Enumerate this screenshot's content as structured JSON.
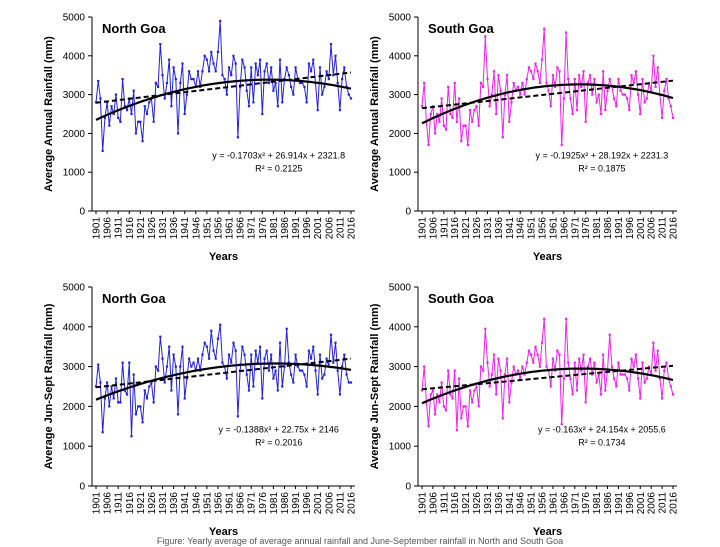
{
  "figure_caption": "Figure: Yearly average of average annual rainfall and June-September rainfall in North and South Goa",
  "chart_data": [
    {
      "type": "line",
      "title": "North Goa",
      "xlabel": "Years",
      "ylabel": "Average Annual Rainfall (mm)",
      "ylim": [
        0,
        5000
      ],
      "yticks": [
        0,
        1000,
        2000,
        3000,
        4000,
        5000
      ],
      "xlim": [
        1901,
        2016
      ],
      "xticks": [
        1901,
        1906,
        1911,
        1916,
        1921,
        1926,
        1931,
        1936,
        1941,
        1946,
        1951,
        1956,
        1961,
        1966,
        1971,
        1976,
        1981,
        1986,
        1991,
        1996,
        2001,
        2006,
        2011,
        2016
      ],
      "series_color": "#2222dd",
      "equation": "y = -0.1703x² + 26.914x + 2321.8",
      "r2": "R² = 0.2125",
      "poly": [
        -0.1703,
        26.914,
        2321.8
      ],
      "linear": [
        2790,
        3570
      ],
      "grid": false,
      "years": [
        1901,
        1902,
        1903,
        1904,
        1905,
        1906,
        1907,
        1908,
        1909,
        1910,
        1911,
        1912,
        1913,
        1914,
        1915,
        1916,
        1917,
        1918,
        1919,
        1920,
        1921,
        1922,
        1923,
        1924,
        1925,
        1926,
        1927,
        1928,
        1929,
        1930,
        1931,
        1932,
        1933,
        1934,
        1935,
        1936,
        1937,
        1938,
        1939,
        1940,
        1941,
        1942,
        1943,
        1944,
        1945,
        1946,
        1947,
        1948,
        1949,
        1950,
        1951,
        1952,
        1953,
        1954,
        1955,
        1956,
        1957,
        1958,
        1959,
        1960,
        1961,
        1962,
        1963,
        1964,
        1965,
        1966,
        1967,
        1968,
        1969,
        1970,
        1971,
        1972,
        1973,
        1974,
        1975,
        1976,
        1977,
        1978,
        1979,
        1980,
        1981,
        1982,
        1983,
        1984,
        1985,
        1986,
        1987,
        1988,
        1989,
        1990,
        1991,
        1992,
        1993,
        1994,
        1995,
        1996,
        1997,
        1998,
        1999,
        2000,
        2001,
        2002,
        2003,
        2004,
        2005,
        2006,
        2007,
        2008,
        2009,
        2010,
        2011,
        2012,
        2013,
        2014,
        2015,
        2016
      ],
      "values": [
        2800,
        3350,
        2900,
        1550,
        2400,
        2800,
        2200,
        2700,
        2500,
        3000,
        2400,
        2300,
        3400,
        2700,
        2600,
        2900,
        2500,
        3100,
        2000,
        2300,
        2300,
        1800,
        2700,
        2500,
        2800,
        2900,
        2300,
        3300,
        3200,
        4300,
        3500,
        2900,
        3300,
        3900,
        2700,
        3700,
        3400,
        2000,
        3300,
        3800,
        2500,
        3000,
        3600,
        3400,
        3400,
        3200,
        3600,
        3200,
        3600,
        4000,
        3900,
        3600,
        4100,
        3800,
        3600,
        4100,
        4900,
        3500,
        3400,
        3000,
        3700,
        3500,
        4000,
        3800,
        1900,
        3200,
        3900,
        3700,
        3100,
        2700,
        3700,
        2800,
        3800,
        3500,
        3900,
        2500,
        3600,
        3800,
        3300,
        3700,
        3100,
        3300,
        2700,
        3900,
        2800,
        3400,
        3700,
        3500,
        3200,
        3000,
        3700,
        3400,
        3300,
        3300,
        3200,
        2800,
        3800,
        3600,
        3900,
        3300,
        2600,
        3700,
        3000,
        3200,
        3600,
        3400,
        4300,
        3500,
        4000,
        3300,
        2600,
        3400,
        3700,
        3200,
        3000,
        2900
      ]
    },
    {
      "type": "line",
      "title": "South Goa",
      "xlabel": "Years",
      "ylabel": "Average Annual Rainfall (mm)",
      "ylim": [
        0,
        5000
      ],
      "yticks": [
        0,
        1000,
        2000,
        3000,
        4000,
        5000
      ],
      "xlim": [
        1901,
        2016
      ],
      "xticks": [
        1901,
        1906,
        1911,
        1916,
        1921,
        1926,
        1931,
        1936,
        1941,
        1946,
        1951,
        1956,
        1961,
        1966,
        1971,
        1976,
        1981,
        1986,
        1991,
        1996,
        2001,
        2006,
        2011,
        2016
      ],
      "series_color": "#ee22ee",
      "equation": "y = -0.1925x² + 28.192x + 2231.3",
      "r2": "R² = 0.1875",
      "poly": [
        -0.1925,
        28.192,
        2231.3
      ],
      "linear": [
        2650,
        3360
      ],
      "grid": false,
      "years": [
        1901,
        1902,
        1903,
        1904,
        1905,
        1906,
        1907,
        1908,
        1909,
        1910,
        1911,
        1912,
        1913,
        1914,
        1915,
        1916,
        1917,
        1918,
        1919,
        1920,
        1921,
        1922,
        1923,
        1924,
        1925,
        1926,
        1927,
        1928,
        1929,
        1930,
        1931,
        1932,
        1933,
        1934,
        1935,
        1936,
        1937,
        1938,
        1939,
        1940,
        1941,
        1942,
        1943,
        1944,
        1945,
        1946,
        1947,
        1948,
        1949,
        1950,
        1951,
        1952,
        1953,
        1954,
        1955,
        1956,
        1957,
        1958,
        1959,
        1960,
        1961,
        1962,
        1963,
        1964,
        1965,
        1966,
        1967,
        1968,
        1969,
        1970,
        1971,
        1972,
        1973,
        1974,
        1975,
        1976,
        1977,
        1978,
        1979,
        1980,
        1981,
        1982,
        1983,
        1984,
        1985,
        1986,
        1987,
        1988,
        1989,
        1990,
        1991,
        1992,
        1993,
        1994,
        1995,
        1996,
        1997,
        1998,
        1999,
        2000,
        2001,
        2002,
        2003,
        2004,
        2005,
        2006,
        2007,
        2008,
        2009,
        2010,
        2011,
        2012,
        2013,
        2014,
        2015,
        2016
      ],
      "values": [
        2700,
        3300,
        2300,
        1700,
        2500,
        2700,
        2000,
        2500,
        2300,
        2900,
        2200,
        2100,
        3200,
        2500,
        2400,
        3300,
        2300,
        2900,
        1800,
        2200,
        2200,
        1700,
        2600,
        2300,
        2600,
        2700,
        2200,
        3300,
        3200,
        4500,
        3400,
        2700,
        3000,
        3600,
        2500,
        3500,
        3100,
        1900,
        3000,
        3500,
        2300,
        2800,
        3300,
        3100,
        3200,
        3000,
        3300,
        3000,
        3400,
        3700,
        3600,
        3400,
        3800,
        3600,
        3300,
        3900,
        4700,
        3300,
        3100,
        2700,
        3500,
        3200,
        3700,
        3600,
        1700,
        2900,
        4600,
        3400,
        2900,
        2500,
        3400,
        2600,
        3500,
        3200,
        3600,
        2300,
        3300,
        3500,
        3000,
        3400,
        2800,
        3000,
        2500,
        3600,
        2600,
        3100,
        3400,
        3200,
        2900,
        2700,
        3400,
        3100,
        3000,
        3000,
        2900,
        2600,
        3500,
        3300,
        3600,
        3000,
        2500,
        3400,
        2800,
        2900,
        3300,
        3100,
        4000,
        3200,
        3700,
        3000,
        2400,
        3100,
        3400,
        2900,
        2700,
        2400
      ]
    },
    {
      "type": "line",
      "title": "North Goa",
      "xlabel": "Years",
      "ylabel": "Average Jun-Sept Rainfall (mm)",
      "ylim": [
        0,
        5000
      ],
      "yticks": [
        0,
        1000,
        2000,
        3000,
        4000,
        5000
      ],
      "xlim": [
        1901,
        2016
      ],
      "xticks": [
        1901,
        1906,
        1911,
        1916,
        1921,
        1926,
        1931,
        1936,
        1941,
        1946,
        1951,
        1956,
        1961,
        1966,
        1971,
        1976,
        1981,
        1986,
        1991,
        1996,
        2001,
        2006,
        2011,
        2016
      ],
      "series_color": "#2222dd",
      "equation": "y = -0.1388x² + 22.75x + 2146",
      "r2": "R² = 0.2016",
      "poly": [
        -0.1388,
        22.75,
        2146
      ],
      "linear": [
        2480,
        3200
      ],
      "grid": false,
      "years": [
        1901,
        1902,
        1903,
        1904,
        1905,
        1906,
        1907,
        1908,
        1909,
        1910,
        1911,
        1912,
        1913,
        1914,
        1915,
        1916,
        1917,
        1918,
        1919,
        1920,
        1921,
        1922,
        1923,
        1924,
        1925,
        1926,
        1927,
        1928,
        1929,
        1930,
        1931,
        1932,
        1933,
        1934,
        1935,
        1936,
        1937,
        1938,
        1939,
        1940,
        1941,
        1942,
        1943,
        1944,
        1945,
        1946,
        1947,
        1948,
        1949,
        1950,
        1951,
        1952,
        1953,
        1954,
        1955,
        1956,
        1957,
        1958,
        1959,
        1960,
        1961,
        1962,
        1963,
        1964,
        1965,
        1966,
        1967,
        1968,
        1969,
        1970,
        1971,
        1972,
        1973,
        1974,
        1975,
        1976,
        1977,
        1978,
        1979,
        1980,
        1981,
        1982,
        1983,
        1984,
        1985,
        1986,
        1987,
        1988,
        1989,
        1990,
        1991,
        1992,
        1993,
        1994,
        1995,
        1996,
        1997,
        1998,
        1999,
        2000,
        2001,
        2002,
        2003,
        2004,
        2005,
        2006,
        2007,
        2008,
        2009,
        2010,
        2011,
        2012,
        2013,
        2014,
        2015,
        2016
      ],
      "values": [
        2500,
        3050,
        2600,
        1350,
        2200,
        2600,
        2000,
        2500,
        2200,
        2700,
        2100,
        2100,
        3100,
        2400,
        2300,
        3100,
        1250,
        2800,
        1800,
        2000,
        2000,
        1600,
        2400,
        2200,
        2500,
        2600,
        2100,
        3000,
        2900,
        3750,
        3200,
        2600,
        3000,
        3500,
        2400,
        3300,
        3000,
        1800,
        3000,
        3500,
        2200,
        2700,
        3200,
        3000,
        3100,
        2900,
        3200,
        2900,
        3300,
        3600,
        3500,
        3200,
        3900,
        3400,
        3200,
        3700,
        4050,
        3100,
        3000,
        2700,
        3300,
        3100,
        3600,
        3400,
        1750,
        2900,
        3500,
        3300,
        2800,
        2400,
        3300,
        2500,
        3400,
        3100,
        3500,
        2200,
        3200,
        3400,
        2900,
        3300,
        2700,
        2900,
        2400,
        3600,
        2500,
        3000,
        3950,
        3100,
        2800,
        2600,
        3300,
        3000,
        2900,
        2900,
        2800,
        2500,
        3400,
        3200,
        3500,
        2900,
        2300,
        3300,
        2700,
        2800,
        3200,
        3000,
        3800,
        3100,
        3600,
        2900,
        2300,
        3000,
        3300,
        2800,
        2600,
        2600
      ]
    },
    {
      "type": "line",
      "title": "South Goa",
      "xlabel": "Years",
      "ylabel": "Average Jun-Sept Rainfall (mm)",
      "ylim": [
        0,
        5000
      ],
      "yticks": [
        0,
        1000,
        2000,
        3000,
        4000,
        5000
      ],
      "xlim": [
        1901,
        2016
      ],
      "xticks": [
        1901,
        1906,
        1911,
        1916,
        1921,
        1926,
        1931,
        1936,
        1941,
        1946,
        1951,
        1956,
        1961,
        1966,
        1971,
        1976,
        1981,
        1986,
        1991,
        1996,
        2001,
        2006,
        2011,
        2016
      ],
      "series_color": "#ee22ee",
      "equation": "y = -0.163x² + 24.154x + 2055.6",
      "r2": "R² = 0.1734",
      "poly": [
        -0.163,
        24.154,
        2055.6
      ],
      "linear": [
        2430,
        3020
      ],
      "grid": false,
      "years": [
        1901,
        1902,
        1903,
        1904,
        1905,
        1906,
        1907,
        1908,
        1909,
        1910,
        1911,
        1912,
        1913,
        1914,
        1915,
        1916,
        1917,
        1918,
        1919,
        1920,
        1921,
        1922,
        1923,
        1924,
        1925,
        1926,
        1927,
        1928,
        1929,
        1930,
        1931,
        1932,
        1933,
        1934,
        1935,
        1936,
        1937,
        1938,
        1939,
        1940,
        1941,
        1942,
        1943,
        1944,
        1945,
        1946,
        1947,
        1948,
        1949,
        1950,
        1951,
        1952,
        1953,
        1954,
        1955,
        1956,
        1957,
        1958,
        1959,
        1960,
        1961,
        1962,
        1963,
        1964,
        1965,
        1966,
        1967,
        1968,
        1969,
        1970,
        1971,
        1972,
        1973,
        1974,
        1975,
        1976,
        1977,
        1978,
        1979,
        1980,
        1981,
        1982,
        1983,
        1984,
        1985,
        1986,
        1987,
        1988,
        1989,
        1990,
        1991,
        1992,
        1993,
        1994,
        1995,
        1996,
        1997,
        1998,
        1999,
        2000,
        2001,
        2002,
        2003,
        2004,
        2005,
        2006,
        2007,
        2008,
        2009,
        2010,
        2011,
        2012,
        2013,
        2014,
        2015,
        2016
      ],
      "values": [
        2400,
        3000,
        2100,
        1500,
        2300,
        2400,
        1800,
        2300,
        2100,
        2600,
        2000,
        1900,
        2900,
        2300,
        2200,
        2900,
        1400,
        2700,
        1700,
        2000,
        2000,
        1500,
        2400,
        2100,
        2400,
        2500,
        2000,
        3000,
        2900,
        3950,
        3100,
        2500,
        2800,
        3300,
        2300,
        3200,
        2900,
        1700,
        2800,
        3200,
        2100,
        2600,
        3000,
        2800,
        2900,
        2700,
        3000,
        2800,
        3100,
        3400,
        3300,
        3100,
        3500,
        3300,
        3000,
        3600,
        4200,
        3000,
        2900,
        2500,
        3200,
        2900,
        3400,
        3300,
        1550,
        2700,
        4200,
        3100,
        2700,
        2300,
        3100,
        2400,
        3200,
        2900,
        3300,
        2100,
        3000,
        3200,
        2800,
        3100,
        2600,
        2800,
        2300,
        3300,
        2400,
        2900,
        3800,
        3000,
        2700,
        2500,
        3100,
        2800,
        2800,
        2800,
        2700,
        2400,
        3200,
        3000,
        3300,
        2700,
        2200,
        3100,
        2600,
        2700,
        3000,
        2800,
        3600,
        2900,
        3400,
        2700,
        2200,
        2900,
        3100,
        2700,
        2500,
        2300
      ]
    }
  ]
}
